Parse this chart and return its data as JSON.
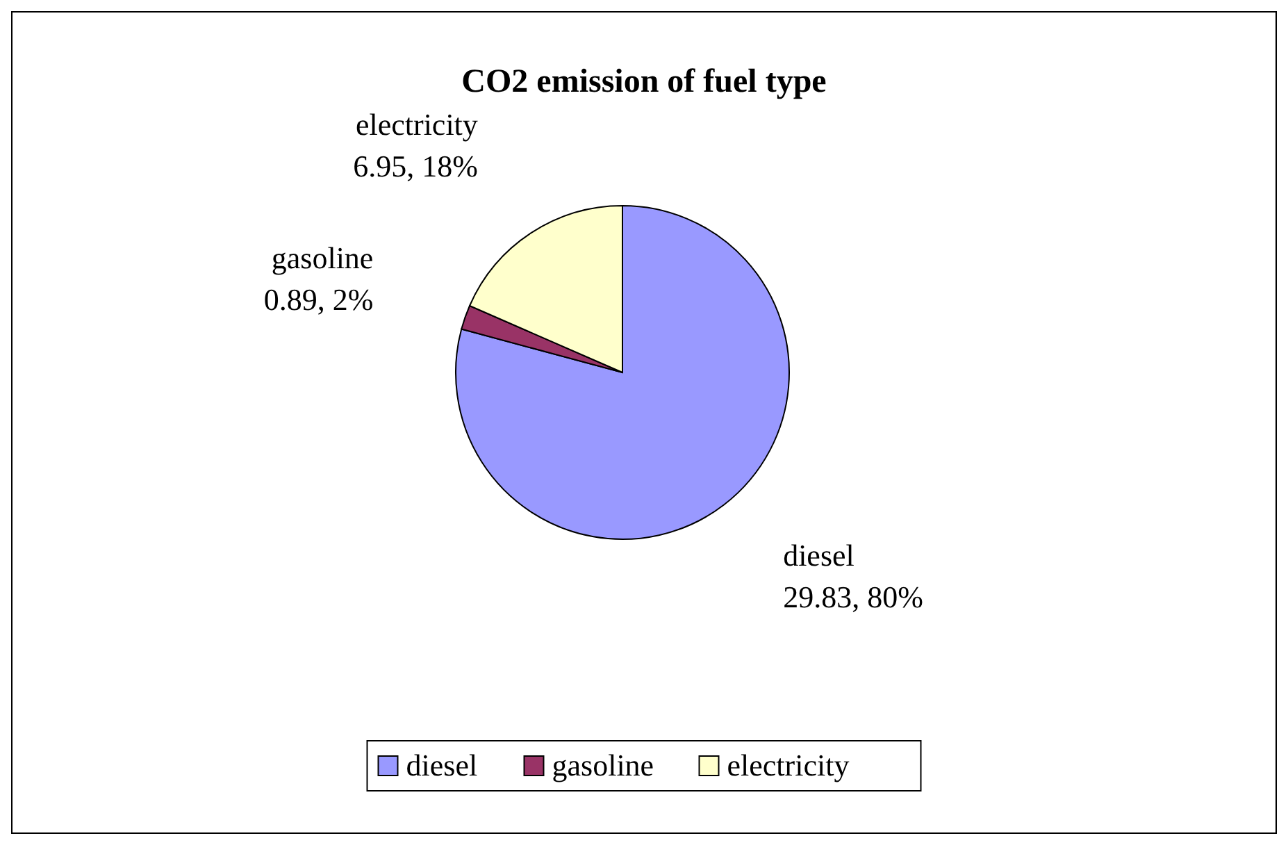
{
  "chart_data": {
    "type": "pie",
    "title": "CO2 emission of fuel type",
    "categories": [
      "diesel",
      "gasoline",
      "electricity"
    ],
    "values": [
      29.83,
      0.89,
      6.95
    ],
    "colors": [
      "#9999ff",
      "#993366",
      "#ffffcc"
    ],
    "value_labels": [
      "29.83, 80%",
      "0.89, 2%",
      "6.95, 18%"
    ],
    "legend": "bottom"
  }
}
